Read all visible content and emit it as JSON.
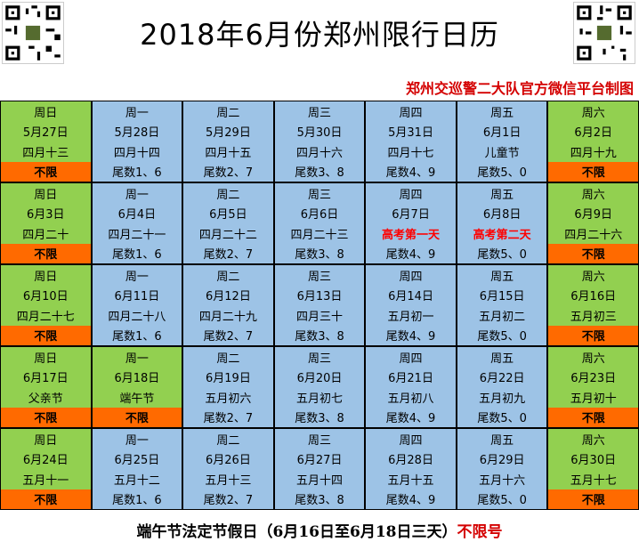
{
  "header": {
    "title": "2018年6月份郑州限行日历",
    "subtitle": "郑州交巡警二大队官方微信平台制图"
  },
  "calendar": {
    "rows": [
      [
        {
          "day": "周日",
          "date": "5月27日",
          "lunar": "四月十三",
          "rule": "不限",
          "type": "weekend"
        },
        {
          "day": "周一",
          "date": "5月28日",
          "lunar": "四月十四",
          "rule": "尾数1、6",
          "type": "weekday"
        },
        {
          "day": "周二",
          "date": "5月29日",
          "lunar": "四月十五",
          "rule": "尾数2、7",
          "type": "weekday"
        },
        {
          "day": "周三",
          "date": "5月30日",
          "lunar": "四月十六",
          "rule": "尾数3、8",
          "type": "weekday"
        },
        {
          "day": "周四",
          "date": "5月31日",
          "lunar": "四月十七",
          "rule": "尾数4、9",
          "type": "weekday"
        },
        {
          "day": "周五",
          "date": "6月1日",
          "lunar": "儿童节",
          "rule": "尾数5、0",
          "type": "weekday"
        },
        {
          "day": "周六",
          "date": "6月2日",
          "lunar": "四月十九",
          "rule": "不限",
          "type": "weekend"
        }
      ],
      [
        {
          "day": "周日",
          "date": "6月3日",
          "lunar": "四月二十",
          "rule": "不限",
          "type": "weekend"
        },
        {
          "day": "周一",
          "date": "6月4日",
          "lunar": "四月二十一",
          "rule": "尾数1、6",
          "type": "weekday"
        },
        {
          "day": "周二",
          "date": "6月5日",
          "lunar": "四月二十二",
          "rule": "尾数2、7",
          "type": "weekday"
        },
        {
          "day": "周三",
          "date": "6月6日",
          "lunar": "四月二十三",
          "rule": "尾数3、8",
          "type": "weekday"
        },
        {
          "day": "周四",
          "date": "6月7日",
          "lunar": "高考第一天",
          "rule": "尾数4、9",
          "type": "weekday",
          "exam": true
        },
        {
          "day": "周五",
          "date": "6月8日",
          "lunar": "高考第二天",
          "rule": "尾数5、0",
          "type": "weekday",
          "exam": true
        },
        {
          "day": "周六",
          "date": "6月9日",
          "lunar": "四月二十六",
          "rule": "不限",
          "type": "weekend"
        }
      ],
      [
        {
          "day": "周日",
          "date": "6月10日",
          "lunar": "四月二十七",
          "rule": "不限",
          "type": "weekend"
        },
        {
          "day": "周一",
          "date": "6月11日",
          "lunar": "四月二十八",
          "rule": "尾数1、6",
          "type": "weekday"
        },
        {
          "day": "周二",
          "date": "6月12日",
          "lunar": "四月二十九",
          "rule": "尾数2、7",
          "type": "weekday"
        },
        {
          "day": "周三",
          "date": "6月13日",
          "lunar": "四月三十",
          "rule": "尾数3、8",
          "type": "weekday"
        },
        {
          "day": "周四",
          "date": "6月14日",
          "lunar": "五月初一",
          "rule": "尾数4、9",
          "type": "weekday"
        },
        {
          "day": "周五",
          "date": "6月15日",
          "lunar": "五月初二",
          "rule": "尾数5、0",
          "type": "weekday"
        },
        {
          "day": "周六",
          "date": "6月16日",
          "lunar": "五月初三",
          "rule": "不限",
          "type": "weekend"
        }
      ],
      [
        {
          "day": "周日",
          "date": "6月17日",
          "lunar": "父亲节",
          "rule": "不限",
          "type": "weekend"
        },
        {
          "day": "周一",
          "date": "6月18日",
          "lunar": "端午节",
          "rule": "不限",
          "type": "weekend"
        },
        {
          "day": "周二",
          "date": "6月19日",
          "lunar": "五月初六",
          "rule": "尾数2、7",
          "type": "weekday"
        },
        {
          "day": "周三",
          "date": "6月20日",
          "lunar": "五月初七",
          "rule": "尾数3、8",
          "type": "weekday"
        },
        {
          "day": "周四",
          "date": "6月21日",
          "lunar": "五月初八",
          "rule": "尾数4、9",
          "type": "weekday"
        },
        {
          "day": "周五",
          "date": "6月22日",
          "lunar": "五月初九",
          "rule": "尾数5、0",
          "type": "weekday"
        },
        {
          "day": "周六",
          "date": "6月23日",
          "lunar": "五月初十",
          "rule": "不限",
          "type": "weekend"
        }
      ],
      [
        {
          "day": "周日",
          "date": "6月24日",
          "lunar": "五月十一",
          "rule": "不限",
          "type": "weekend"
        },
        {
          "day": "周一",
          "date": "6月25日",
          "lunar": "五月十二",
          "rule": "尾数1、6",
          "type": "weekday"
        },
        {
          "day": "周二",
          "date": "6月26日",
          "lunar": "五月十三",
          "rule": "尾数2、7",
          "type": "weekday"
        },
        {
          "day": "周三",
          "date": "6月27日",
          "lunar": "五月十四",
          "rule": "尾数3、8",
          "type": "weekday"
        },
        {
          "day": "周四",
          "date": "6月28日",
          "lunar": "五月十五",
          "rule": "尾数4、9",
          "type": "weekday"
        },
        {
          "day": "周五",
          "date": "6月29日",
          "lunar": "五月十六",
          "rule": "尾数5、0",
          "type": "weekday"
        },
        {
          "day": "周六",
          "date": "6月30日",
          "lunar": "五月十七",
          "rule": "不限",
          "type": "weekend"
        }
      ]
    ]
  },
  "footer": {
    "note": "端午节法定节假日（6月16日至6月18日三天）",
    "note_red": "不限号"
  },
  "colors": {
    "weekday": "#9dc3e6",
    "weekend": "#92d050",
    "free_bar": "#ff6a00",
    "accent_red": "#d40000"
  }
}
